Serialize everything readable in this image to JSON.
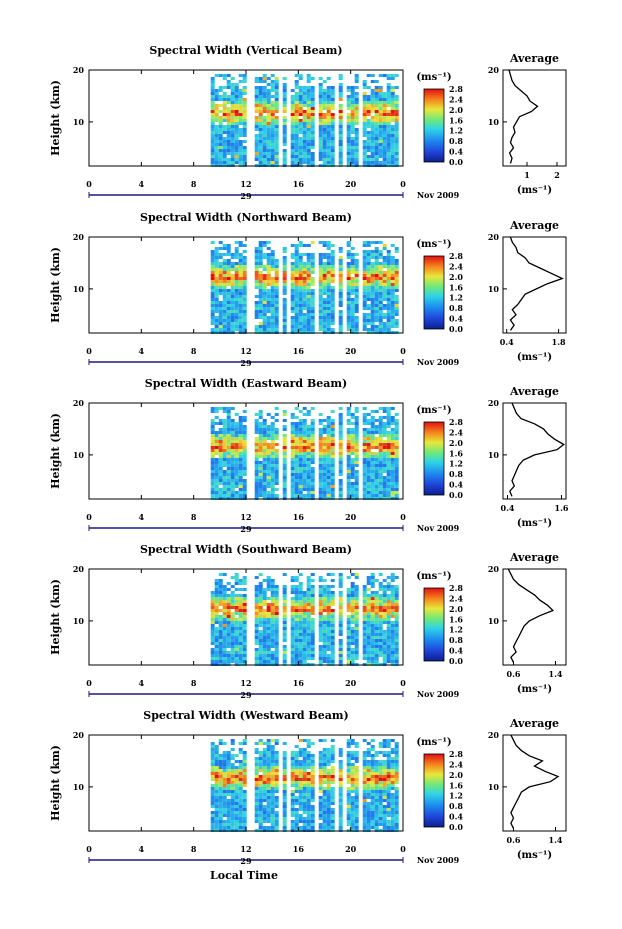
{
  "figure": {
    "date_label": "Nov 2009",
    "day_label": "29",
    "xlabel": "Local Time",
    "colorbar_unit": "(ms⁻¹)",
    "avg_title": "Average",
    "avg_xunit": "(ms⁻¹)",
    "height_label": "Height (km)"
  },
  "chart_data": [
    {
      "type": "heatmap",
      "title": "Spectral Width (Vertical Beam)",
      "ylabel": "Height (km)",
      "x_ticks": [
        "0",
        "4",
        "8",
        "12",
        "16",
        "20",
        "0"
      ],
      "y_ticks": [
        "20",
        "10"
      ],
      "xlim": [
        0,
        24
      ],
      "ylim": [
        1.5,
        20
      ],
      "data_start_hour": 9.3,
      "colorbar": {
        "ticks": [
          "2.8",
          "2.4",
          "2.0",
          "1.6",
          "1.2",
          "0.8",
          "0.4",
          "0.0"
        ],
        "range": [
          0,
          2.8
        ]
      },
      "average_profile": {
        "xlim": [
          0.2,
          2.3
        ],
        "x_ticks": [
          "1",
          "2"
        ],
        "y_ticks": [
          "20",
          "10"
        ],
        "points": [
          [
            0.45,
            2
          ],
          [
            0.5,
            3
          ],
          [
            0.42,
            4
          ],
          [
            0.55,
            5
          ],
          [
            0.45,
            6
          ],
          [
            0.5,
            7
          ],
          [
            0.6,
            8
          ],
          [
            0.55,
            9
          ],
          [
            0.65,
            10
          ],
          [
            0.75,
            11
          ],
          [
            1.15,
            12
          ],
          [
            1.35,
            13
          ],
          [
            1.1,
            14
          ],
          [
            1.0,
            15
          ],
          [
            0.8,
            16
          ],
          [
            0.6,
            17
          ],
          [
            0.5,
            18
          ],
          [
            0.45,
            19
          ],
          [
            0.4,
            20
          ]
        ]
      }
    },
    {
      "type": "heatmap",
      "title": "Spectral Width (Northward Beam)",
      "ylabel": "Height (km)",
      "x_ticks": [
        "0",
        "4",
        "8",
        "12",
        "16",
        "20",
        "0"
      ],
      "y_ticks": [
        "20",
        "10"
      ],
      "xlim": [
        0,
        24
      ],
      "ylim": [
        1.5,
        20
      ],
      "data_start_hour": 9.3,
      "colorbar": {
        "ticks": [
          "2.8",
          "2.4",
          "2.0",
          "1.6",
          "1.2",
          "0.8",
          "0.4",
          "0.0"
        ],
        "range": [
          0,
          2.8
        ]
      },
      "average_profile": {
        "xlim": [
          0.3,
          2.0
        ],
        "x_ticks": [
          "0.4",
          "1.8"
        ],
        "y_ticks": [
          "20",
          "10"
        ],
        "points": [
          [
            0.5,
            2
          ],
          [
            0.6,
            3
          ],
          [
            0.5,
            4
          ],
          [
            0.65,
            5
          ],
          [
            0.55,
            6
          ],
          [
            0.7,
            7
          ],
          [
            0.8,
            8
          ],
          [
            0.9,
            9
          ],
          [
            1.2,
            10
          ],
          [
            1.5,
            11
          ],
          [
            1.9,
            12
          ],
          [
            1.6,
            13
          ],
          [
            1.3,
            14
          ],
          [
            1.0,
            15
          ],
          [
            0.9,
            16
          ],
          [
            0.7,
            17
          ],
          [
            0.65,
            18
          ],
          [
            0.55,
            19
          ],
          [
            0.5,
            20
          ]
        ]
      }
    },
    {
      "type": "heatmap",
      "title": "Spectral Width (Eastward Beam)",
      "ylabel": "Height (km)",
      "x_ticks": [
        "0",
        "4",
        "8",
        "12",
        "16",
        "20",
        "0"
      ],
      "y_ticks": [
        "20",
        "10"
      ],
      "xlim": [
        0,
        24
      ],
      "ylim": [
        1.5,
        20
      ],
      "data_start_hour": 9.3,
      "colorbar": {
        "ticks": [
          "2.8",
          "2.4",
          "2.0",
          "1.6",
          "1.2",
          "0.8",
          "0.4",
          "0.0"
        ],
        "range": [
          0,
          2.8
        ]
      },
      "average_profile": {
        "xlim": [
          0.3,
          1.7
        ],
        "x_ticks": [
          "0.4",
          "1.6"
        ],
        "y_ticks": [
          "20",
          "10"
        ],
        "points": [
          [
            0.5,
            2
          ],
          [
            0.45,
            3
          ],
          [
            0.55,
            4
          ],
          [
            0.5,
            5
          ],
          [
            0.55,
            6
          ],
          [
            0.6,
            7
          ],
          [
            0.65,
            8
          ],
          [
            0.75,
            9
          ],
          [
            1.0,
            10
          ],
          [
            1.5,
            11
          ],
          [
            1.65,
            12
          ],
          [
            1.45,
            13
          ],
          [
            1.3,
            14
          ],
          [
            1.2,
            15
          ],
          [
            1.0,
            16
          ],
          [
            0.7,
            17
          ],
          [
            0.6,
            18
          ],
          [
            0.55,
            19
          ],
          [
            0.5,
            20
          ]
        ]
      }
    },
    {
      "type": "heatmap",
      "title": "Spectral Width (Southward Beam)",
      "ylabel": "Height (km)",
      "x_ticks": [
        "0",
        "4",
        "8",
        "12",
        "16",
        "20",
        "0"
      ],
      "y_ticks": [
        "20",
        "10"
      ],
      "xlim": [
        0,
        24
      ],
      "ylim": [
        1.5,
        20
      ],
      "data_start_hour": 9.3,
      "colorbar": {
        "ticks": [
          "2.8",
          "2.4",
          "2.0",
          "1.6",
          "1.2",
          "0.8",
          "0.4",
          "0.0"
        ],
        "range": [
          0,
          2.8
        ]
      },
      "average_profile": {
        "xlim": [
          0.4,
          1.6
        ],
        "x_ticks": [
          "0.6",
          "1.4"
        ],
        "y_ticks": [
          "20",
          "10"
        ],
        "points": [
          [
            0.6,
            2
          ],
          [
            0.55,
            3
          ],
          [
            0.65,
            4
          ],
          [
            0.6,
            5
          ],
          [
            0.65,
            6
          ],
          [
            0.7,
            7
          ],
          [
            0.75,
            8
          ],
          [
            0.8,
            9
          ],
          [
            0.9,
            10
          ],
          [
            1.1,
            11
          ],
          [
            1.35,
            12
          ],
          [
            1.25,
            13
          ],
          [
            1.1,
            14
          ],
          [
            1.0,
            15
          ],
          [
            0.85,
            16
          ],
          [
            0.7,
            17
          ],
          [
            0.6,
            18
          ],
          [
            0.55,
            19
          ],
          [
            0.5,
            20
          ]
        ]
      }
    },
    {
      "type": "heatmap",
      "title": "Spectral Width (Westward Beam)",
      "ylabel": "Height (km)",
      "x_ticks": [
        "0",
        "4",
        "8",
        "12",
        "16",
        "20",
        "0"
      ],
      "y_ticks": [
        "20",
        "10"
      ],
      "xlim": [
        0,
        24
      ],
      "ylim": [
        1.5,
        20
      ],
      "data_start_hour": 9.3,
      "colorbar": {
        "ticks": [
          "2.8",
          "2.4",
          "2.0",
          "1.6",
          "1.2",
          "0.8",
          "0.4",
          "0.0"
        ],
        "range": [
          0,
          2.8
        ]
      },
      "average_profile": {
        "xlim": [
          0.4,
          1.6
        ],
        "x_ticks": [
          "0.6",
          "1.4"
        ],
        "y_ticks": [
          "20",
          "10"
        ],
        "points": [
          [
            0.6,
            2
          ],
          [
            0.55,
            3
          ],
          [
            0.6,
            4
          ],
          [
            0.55,
            5
          ],
          [
            0.6,
            6
          ],
          [
            0.65,
            7
          ],
          [
            0.7,
            8
          ],
          [
            0.75,
            9
          ],
          [
            0.9,
            10
          ],
          [
            1.3,
            11
          ],
          [
            1.45,
            12
          ],
          [
            1.2,
            13
          ],
          [
            1.0,
            14
          ],
          [
            1.15,
            15
          ],
          [
            0.9,
            16
          ],
          [
            0.75,
            17
          ],
          [
            0.65,
            18
          ],
          [
            0.6,
            19
          ],
          [
            0.55,
            20
          ]
        ]
      }
    }
  ]
}
